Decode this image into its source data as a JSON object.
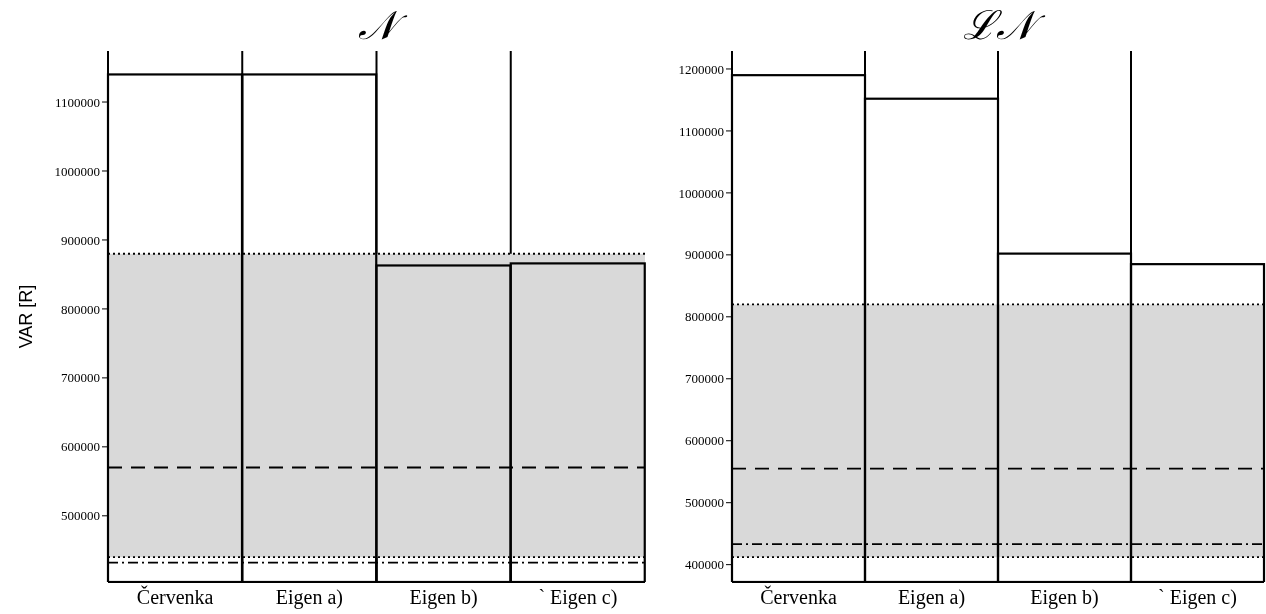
{
  "chart_data": [
    {
      "type": "bar",
      "title": "𝒩",
      "ylabel": "VAR [R]",
      "categories": [
        "Červenka",
        "Eigen a)",
        "Eigen b)",
        "` Eigen c)"
      ],
      "values": [
        1140000,
        1140000,
        863000,
        866000
      ],
      "color": "#000000",
      "ylim": [
        404000,
        1174000
      ],
      "yticks": [
        500000,
        600000,
        700000,
        800000,
        900000,
        1000000,
        1100000
      ],
      "grid": "x",
      "bands": [
        {
          "axis": "y",
          "from": 440000,
          "to": 880000,
          "color": "#d9d9d9"
        }
      ],
      "ref_lines": [
        {
          "axis": "y",
          "value": 880000,
          "line_style": "dotted",
          "color": "#000000"
        },
        {
          "axis": "y",
          "value": 440000,
          "line_style": "dotted",
          "color": "#000000"
        },
        {
          "axis": "y",
          "value": 570000,
          "line_style": "dashed",
          "color": "#000000"
        },
        {
          "axis": "y",
          "value": 432000,
          "line_style": "dashdot",
          "color": "#000000"
        }
      ]
    },
    {
      "type": "bar",
      "title": "ℒ𝒩",
      "categories": [
        "Červenka",
        "Eigen a)",
        "Eigen b)",
        "` Eigen c)"
      ],
      "values": [
        1190000,
        1152000,
        902000,
        885000
      ],
      "color": "#000000",
      "ylim": [
        372000,
        1229000
      ],
      "yticks": [
        400000,
        500000,
        600000,
        700000,
        800000,
        900000,
        1000000,
        1100000,
        1200000
      ],
      "grid": "x",
      "bands": [
        {
          "axis": "y",
          "from": 412000,
          "to": 820000,
          "color": "#d9d9d9"
        }
      ],
      "ref_lines": [
        {
          "axis": "y",
          "value": 820000,
          "line_style": "dotted",
          "color": "#000000"
        },
        {
          "axis": "y",
          "value": 412000,
          "line_style": "dotted",
          "color": "#000000"
        },
        {
          "axis": "y",
          "value": 555000,
          "line_style": "dashed",
          "color": "#000000"
        },
        {
          "axis": "y",
          "value": 433000,
          "line_style": "dashdot",
          "color": "#000000"
        }
      ]
    }
  ]
}
